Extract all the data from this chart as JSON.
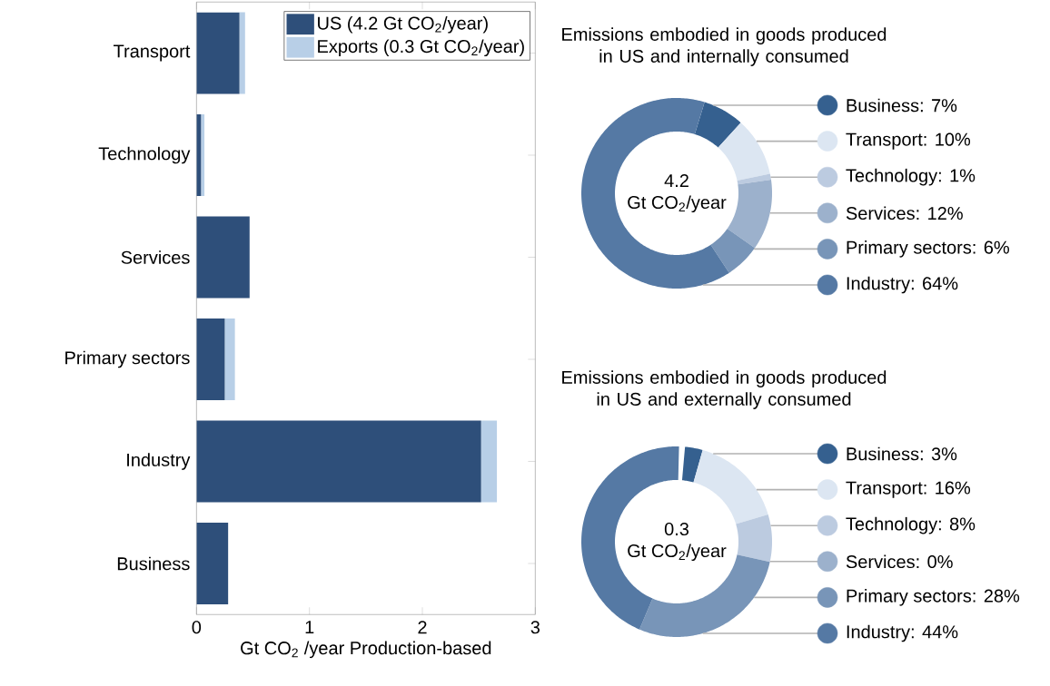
{
  "chart_data": [
    {
      "type": "bar",
      "orientation": "horizontal",
      "stacked": true,
      "categories": [
        "Transport",
        "Technology",
        "Services",
        "Primary sectors",
        "Industry",
        "Business"
      ],
      "series": [
        {
          "name": "US (4.2 Gt CO$_{2}$/year)",
          "color": "#2e4f7a",
          "values": [
            0.38,
            0.04,
            0.47,
            0.25,
            2.52,
            0.28
          ]
        },
        {
          "name": "Exports (0.3 Gt CO$_{2}$/year)",
          "color": "#b8cfe7",
          "values": [
            0.05,
            0.03,
            0,
            0.09,
            0.14,
            0
          ]
        }
      ],
      "xlabel": "Gt CO$_{2}$ /year Production-based",
      "xlim": [
        0,
        3
      ],
      "xticks": [
        0,
        1,
        2,
        3
      ],
      "legend": "top right"
    },
    {
      "type": "donut",
      "title": "Emissions embodied in goods produced in US and internally consumed",
      "categories": [
        "Business: 7%",
        "Transport: 10%",
        "Technology: 1%",
        "Services: 12%",
        "Primary sectors: 6%",
        "Industry: 64%"
      ],
      "values": [
        7,
        10,
        1,
        12,
        6,
        64
      ],
      "colors": [
        "#35608f",
        "#dce6f2",
        "#bccbe0",
        "#9cb1cc",
        "#7895b8",
        "#5579a4"
      ],
      "annotations": [
        "4.2",
        "Gt CO$_{2}$/year"
      ],
      "legend": "right"
    },
    {
      "type": "donut",
      "title": "Emissions embodied in goods produced in US and externally consumed",
      "categories": [
        "Business: 3%",
        "Transport: 16%",
        "Technology: 8%",
        "Services: 0%",
        "Primary sectors: 28%",
        "Industry: 44%"
      ],
      "values": [
        3,
        16,
        8,
        0,
        28,
        44
      ],
      "colors": [
        "#35608f",
        "#dce6f2",
        "#bccbe0",
        "#9cb1cc",
        "#7895b8",
        "#5579a4"
      ],
      "annotations": [
        "0.3",
        "Gt CO$_{2}$/year"
      ],
      "legend": "right"
    }
  ]
}
